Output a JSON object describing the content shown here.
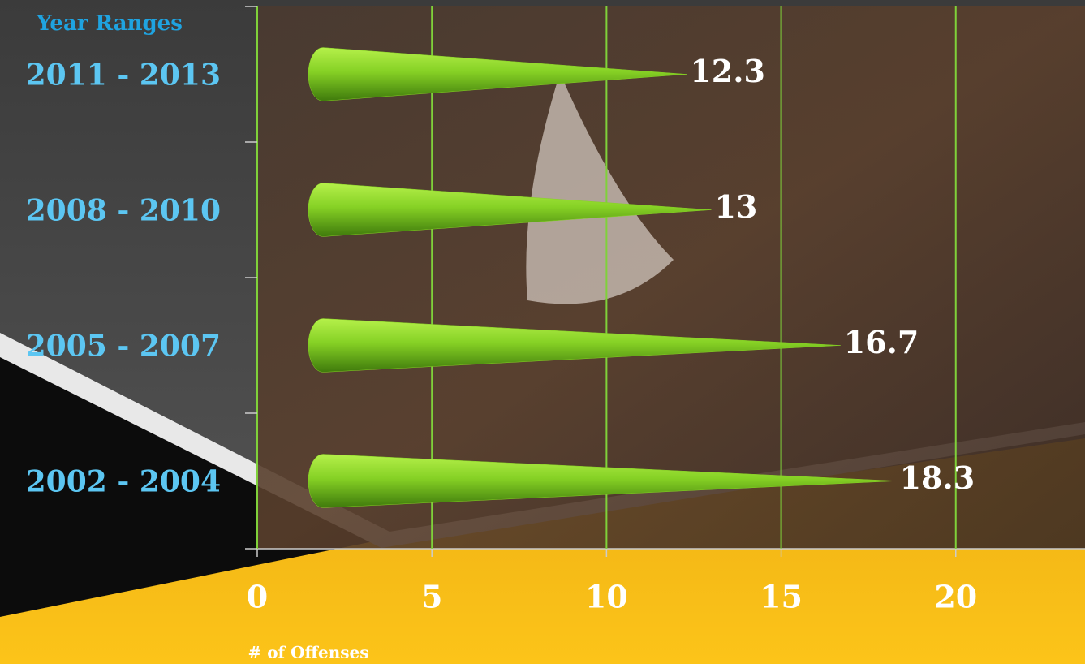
{
  "chart_data": {
    "type": "bar",
    "orientation": "horizontal",
    "y_label": "Year Ranges",
    "x_label": "# of Offenses",
    "categories": [
      "2011 - 2013",
      "2008 - 2010",
      "2005 - 2007",
      "2002 - 2004"
    ],
    "values": [
      12.3,
      13,
      16.7,
      18.3
    ],
    "color": "#86d125",
    "xlim": [
      0,
      23.7
    ],
    "xticks": [
      0,
      5,
      10,
      15,
      20
    ],
    "grid": true
  }
}
